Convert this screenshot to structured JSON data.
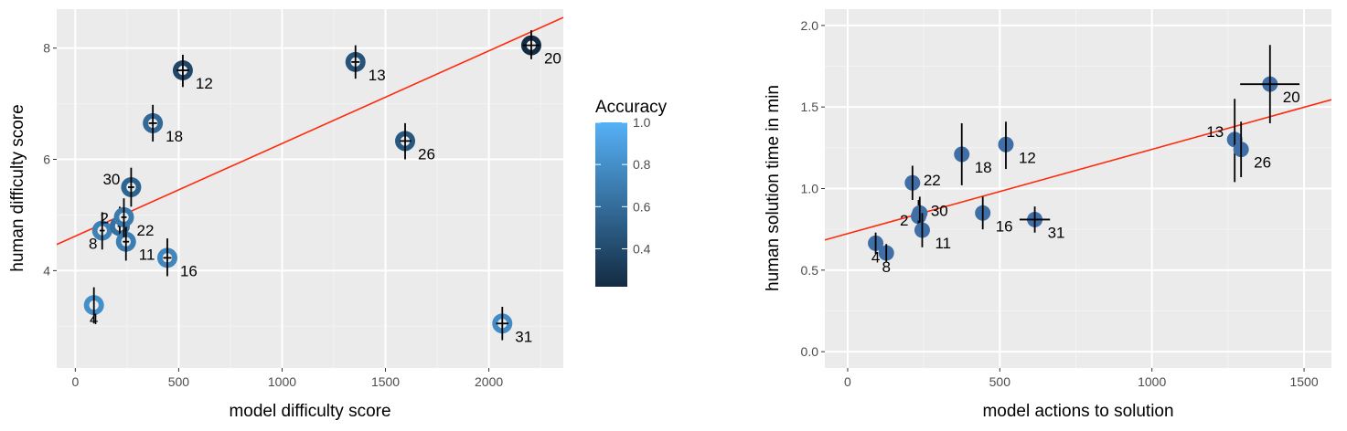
{
  "colors": {
    "panel_bg": "#ebebeb",
    "grid_major": "#ffffff",
    "grid_minor": "#f3f3f3",
    "fit_line": "#ff2a0c",
    "errorbar": "#000000",
    "scale_low": "#132b43",
    "scale_high": "#56b1f7",
    "right_point": "#3f6fa6"
  },
  "chart_data": [
    {
      "type": "scatter",
      "xlabel": "model difficulty score",
      "ylabel": "human difficulty score",
      "xlim": [
        -90,
        2360
      ],
      "ylim": [
        2.25,
        8.7
      ],
      "x_ticks": [
        0,
        500,
        1000,
        1500,
        2000
      ],
      "x_tick_labels": [
        "0",
        "500",
        "1000",
        "1500",
        "2000"
      ],
      "y_ticks": [
        4,
        6,
        8
      ],
      "y_tick_labels": [
        "4",
        "6",
        "8"
      ],
      "grid": true,
      "fit_line": {
        "x": [
          -90,
          2360
        ],
        "y": [
          4.47,
          8.55
        ]
      },
      "color_legend": {
        "title": "Accuracy",
        "range": [
          0.22,
          1.0
        ],
        "ticks": [
          0.4,
          0.6,
          0.8,
          1.0
        ],
        "tick_labels": [
          "0.4",
          "0.6",
          "0.8",
          "1.0"
        ],
        "placement": "right"
      },
      "points": [
        {
          "label": "4",
          "x": 90,
          "y": 3.38,
          "accuracy": 0.8,
          "yerr": [
            3.05,
            3.7
          ],
          "xerr": [
            90,
            90
          ],
          "label_side": "below"
        },
        {
          "label": "8",
          "x": 130,
          "y": 4.72,
          "accuracy": 0.72,
          "yerr": [
            4.38,
            5.05
          ],
          "xerr": [
            118,
            142
          ],
          "label_side": "below-left"
        },
        {
          "label": "2",
          "x": 215,
          "y": 4.8,
          "accuracy": 0.62,
          "yerr": [
            4.45,
            5.15
          ],
          "xerr": [
            205,
            225
          ],
          "label_side": "above-left"
        },
        {
          "label": "11",
          "x": 245,
          "y": 4.52,
          "accuracy": 0.7,
          "yerr": [
            4.18,
            4.85
          ],
          "xerr": [
            230,
            260
          ],
          "label_side": "below-right"
        },
        {
          "label": "22",
          "x": 235,
          "y": 4.96,
          "accuracy": 0.68,
          "yerr": [
            4.6,
            5.3
          ],
          "xerr": [
            222,
            248
          ],
          "label_side": "below-right"
        },
        {
          "label": "30",
          "x": 270,
          "y": 5.5,
          "accuracy": 0.55,
          "yerr": [
            5.15,
            5.85
          ],
          "xerr": [
            255,
            285
          ],
          "label_side": "above-left"
        },
        {
          "label": "16",
          "x": 445,
          "y": 4.23,
          "accuracy": 0.75,
          "yerr": [
            3.9,
            4.58
          ],
          "xerr": [
            425,
            465
          ],
          "label_side": "below-right"
        },
        {
          "label": "18",
          "x": 375,
          "y": 6.65,
          "accuracy": 0.58,
          "yerr": [
            6.32,
            6.98
          ],
          "xerr": [
            355,
            395
          ],
          "label_side": "below-right"
        },
        {
          "label": "12",
          "x": 520,
          "y": 7.6,
          "accuracy": 0.38,
          "yerr": [
            7.3,
            7.88
          ],
          "xerr": [
            490,
            550
          ],
          "label_side": "below-right"
        },
        {
          "label": "13",
          "x": 1355,
          "y": 7.75,
          "accuracy": 0.45,
          "yerr": [
            7.45,
            8.05
          ],
          "xerr": [
            1335,
            1375
          ],
          "label_side": "below-right"
        },
        {
          "label": "26",
          "x": 1595,
          "y": 6.33,
          "accuracy": 0.48,
          "yerr": [
            6.0,
            6.65
          ],
          "xerr": [
            1570,
            1625
          ],
          "label_side": "below-right"
        },
        {
          "label": "20",
          "x": 2205,
          "y": 8.05,
          "accuracy": 0.22,
          "yerr": [
            7.8,
            8.32
          ],
          "xerr": [
            2165,
            2245
          ],
          "label_side": "below-right"
        },
        {
          "label": "31",
          "x": 2065,
          "y": 3.05,
          "accuracy": 0.78,
          "yerr": [
            2.75,
            3.35
          ],
          "xerr": [
            2035,
            2095
          ],
          "label_side": "below-right"
        }
      ]
    },
    {
      "type": "scatter",
      "xlabel": "model actions to solution",
      "ylabel": "human solution time in min",
      "xlim": [
        -75,
        1590
      ],
      "ylim": [
        -0.1,
        2.1
      ],
      "x_ticks": [
        0,
        500,
        1000,
        1500
      ],
      "x_tick_labels": [
        "0",
        "500",
        "1000",
        "1500"
      ],
      "y_ticks": [
        0.0,
        0.5,
        1.0,
        1.5,
        2.0
      ],
      "y_tick_labels": [
        "0.0",
        "0.5",
        "1.0",
        "1.5",
        "2.0"
      ],
      "grid": true,
      "fit_line": {
        "x": [
          -75,
          1590
        ],
        "y": [
          0.685,
          1.545
        ]
      },
      "points": [
        {
          "label": "4",
          "x": 92,
          "y": 0.665,
          "yerr": [
            0.6,
            0.73
          ],
          "xerr": [
            92,
            92
          ],
          "label_side": "below"
        },
        {
          "label": "8",
          "x": 127,
          "y": 0.605,
          "yerr": [
            0.55,
            0.66
          ],
          "xerr": [
            127,
            127
          ],
          "label_side": "below"
        },
        {
          "label": "2",
          "x": 233,
          "y": 0.83,
          "yerr": [
            0.73,
            0.93
          ],
          "xerr": [
            233,
            233
          ],
          "label_side": "left"
        },
        {
          "label": "22",
          "x": 213,
          "y": 1.035,
          "yerr": [
            0.93,
            1.14
          ],
          "xerr": [
            213,
            213
          ],
          "label_side": "above-right"
        },
        {
          "label": "30",
          "x": 237,
          "y": 0.85,
          "yerr": [
            0.75,
            0.95
          ],
          "xerr": [
            237,
            237
          ],
          "label_side": "above-right"
        },
        {
          "label": "11",
          "x": 245,
          "y": 0.745,
          "yerr": [
            0.64,
            0.85
          ],
          "xerr": [
            245,
            245
          ],
          "label_side": "below-right"
        },
        {
          "label": "18",
          "x": 375,
          "y": 1.21,
          "yerr": [
            1.02,
            1.4
          ],
          "xerr": [
            375,
            375
          ],
          "label_side": "below-right"
        },
        {
          "label": "16",
          "x": 444,
          "y": 0.85,
          "yerr": [
            0.75,
            0.95
          ],
          "xerr": [
            444,
            444
          ],
          "label_side": "below-right"
        },
        {
          "label": "12",
          "x": 520,
          "y": 1.27,
          "yerr": [
            1.12,
            1.41
          ],
          "xerr": [
            520,
            520
          ],
          "label_side": "below-right"
        },
        {
          "label": "31",
          "x": 615,
          "y": 0.81,
          "yerr": [
            0.73,
            0.89
          ],
          "xerr": [
            565,
            665
          ],
          "label_side": "below-right"
        },
        {
          "label": "13",
          "x": 1272,
          "y": 1.3,
          "yerr": [
            1.04,
            1.55
          ],
          "xerr": [
            1272,
            1272
          ],
          "label_side": "above-left"
        },
        {
          "label": "26",
          "x": 1293,
          "y": 1.24,
          "yerr": [
            1.07,
            1.41
          ],
          "xerr": [
            1293,
            1293
          ],
          "label_side": "below-right"
        },
        {
          "label": "20",
          "x": 1388,
          "y": 1.64,
          "yerr": [
            1.4,
            1.88
          ],
          "xerr": [
            1290,
            1485
          ],
          "label_side": "below-right"
        }
      ]
    }
  ]
}
